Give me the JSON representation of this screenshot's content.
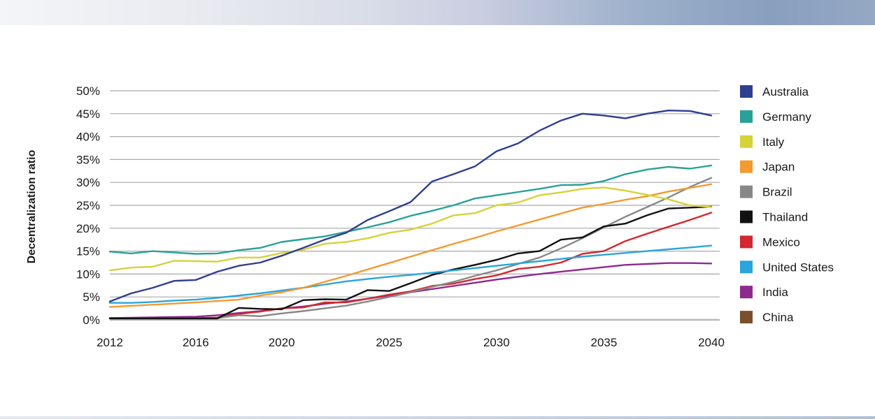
{
  "chart_data": {
    "type": "line",
    "title": "",
    "xlabel": "",
    "ylabel": "Decentralization ratio",
    "xlim": [
      2012,
      2040
    ],
    "ylim": [
      0,
      50
    ],
    "x_ticks": [
      2012,
      2016,
      2020,
      2025,
      2030,
      2035,
      2040
    ],
    "x_tick_labels": [
      "2012",
      "2016",
      "2020",
      "2025",
      "2030",
      "2035",
      "2040"
    ],
    "y_ticks": [
      0,
      5,
      10,
      15,
      20,
      25,
      30,
      35,
      40,
      45,
      50
    ],
    "y_tick_labels": [
      "0%",
      "5%",
      "10%",
      "15%",
      "20%",
      "25%",
      "30%",
      "35%",
      "40%",
      "45%",
      "50%"
    ],
    "grid": "horizontal",
    "legend_position": "right",
    "series": [
      {
        "name": "Australia",
        "color": "#2e3f8f",
        "x": [
          2012,
          2013,
          2014,
          2015,
          2016,
          2017,
          2018,
          2019,
          2020,
          2021,
          2022,
          2023,
          2024,
          2025,
          2026,
          2027,
          2028,
          2029,
          2030,
          2031,
          2032,
          2033,
          2034,
          2035,
          2036,
          2037,
          2038,
          2039,
          2040
        ],
        "values": [
          4.0,
          5.8,
          7.0,
          8.5,
          8.7,
          10.5,
          11.8,
          12.5,
          14.0,
          15.7,
          17.5,
          19.0,
          21.8,
          23.7,
          25.7,
          30.2,
          31.8,
          33.5,
          36.8,
          38.5,
          41.3,
          43.5,
          45.0,
          44.6,
          44.0,
          45.0,
          45.7,
          45.6,
          44.6
        ]
      },
      {
        "name": "Germany",
        "color": "#2aa198",
        "x": [
          2012,
          2013,
          2014,
          2015,
          2016,
          2017,
          2018,
          2019,
          2020,
          2021,
          2022,
          2023,
          2024,
          2025,
          2026,
          2027,
          2028,
          2029,
          2030,
          2031,
          2032,
          2033,
          2034,
          2035,
          2036,
          2037,
          2038,
          2039,
          2040
        ],
        "values": [
          14.9,
          14.5,
          15.0,
          14.7,
          14.4,
          14.5,
          15.2,
          15.7,
          17.0,
          17.6,
          18.2,
          19.2,
          20.2,
          21.3,
          22.7,
          23.8,
          25.0,
          26.5,
          27.2,
          27.9,
          28.6,
          29.4,
          29.5,
          30.3,
          31.8,
          32.8,
          33.4,
          33.0,
          33.7
        ]
      },
      {
        "name": "Italy",
        "color": "#d6d23a",
        "x": [
          2012,
          2013,
          2014,
          2015,
          2016,
          2017,
          2018,
          2019,
          2020,
          2021,
          2022,
          2023,
          2024,
          2025,
          2026,
          2027,
          2028,
          2029,
          2030,
          2031,
          2032,
          2033,
          2034,
          2035,
          2036,
          2037,
          2038,
          2039,
          2040
        ],
        "values": [
          10.8,
          11.4,
          11.6,
          12.9,
          12.8,
          12.7,
          13.6,
          13.6,
          14.6,
          15.3,
          16.6,
          17.0,
          17.8,
          19.0,
          19.7,
          21.0,
          22.8,
          23.3,
          25.0,
          25.6,
          27.2,
          27.8,
          28.6,
          28.9,
          28.2,
          27.3,
          26.3,
          25.0,
          24.6
        ]
      },
      {
        "name": "Japan",
        "color": "#f39a30",
        "x": [
          2012,
          2016,
          2018,
          2019,
          2020,
          2021,
          2022,
          2023,
          2024,
          2025,
          2026,
          2027,
          2028,
          2029,
          2030,
          2031,
          2032,
          2033,
          2034,
          2035,
          2036,
          2037,
          2038,
          2039,
          2040
        ],
        "values": [
          2.8,
          3.8,
          4.4,
          5.3,
          6.0,
          7.0,
          8.3,
          9.6,
          11.0,
          12.4,
          13.8,
          15.2,
          16.6,
          17.9,
          19.3,
          20.6,
          21.9,
          23.2,
          24.5,
          25.3,
          26.2,
          27.0,
          28.0,
          28.8,
          29.6
        ]
      },
      {
        "name": "Brazil",
        "color": "#888888",
        "x": [
          2012,
          2016,
          2017,
          2018,
          2019,
          2020,
          2021,
          2022,
          2023,
          2024,
          2025,
          2026,
          2027,
          2028,
          2029,
          2030,
          2031,
          2032,
          2033,
          2034,
          2035,
          2036,
          2037,
          2038,
          2039,
          2040
        ],
        "values": [
          0.3,
          0.3,
          0.4,
          1.0,
          0.8,
          1.4,
          1.9,
          2.5,
          3.1,
          4.0,
          5.0,
          6.0,
          7.2,
          8.3,
          9.6,
          10.8,
          12.2,
          13.6,
          15.6,
          17.8,
          20.2,
          22.5,
          24.6,
          26.7,
          29.0,
          31.0
        ]
      },
      {
        "name": "Thailand",
        "color": "#111111",
        "x": [
          2012,
          2016,
          2017,
          2018,
          2019,
          2020,
          2021,
          2022,
          2023,
          2024,
          2025,
          2026,
          2027,
          2028,
          2029,
          2030,
          2031,
          2032,
          2033,
          2034,
          2035,
          2036,
          2037,
          2038,
          2039,
          2040
        ],
        "values": [
          0.3,
          0.3,
          0.3,
          2.6,
          2.4,
          2.3,
          4.3,
          4.5,
          4.4,
          6.5,
          6.3,
          8.0,
          9.8,
          11.0,
          12.0,
          13.1,
          14.5,
          15.0,
          17.5,
          18.0,
          20.4,
          21.0,
          22.8,
          24.3,
          24.5,
          24.7
        ]
      },
      {
        "name": "Mexico",
        "color": "#d2282e",
        "x": [
          2012,
          2016,
          2017,
          2018,
          2019,
          2020,
          2021,
          2022,
          2023,
          2024,
          2025,
          2026,
          2027,
          2028,
          2029,
          2030,
          2031,
          2032,
          2033,
          2034,
          2035,
          2036,
          2037,
          2038,
          2039,
          2040
        ],
        "values": [
          0.4,
          0.4,
          0.5,
          1.3,
          1.8,
          2.5,
          2.7,
          3.8,
          3.8,
          4.6,
          5.5,
          6.2,
          7.4,
          7.9,
          8.9,
          9.7,
          11.1,
          11.6,
          12.5,
          14.4,
          15.0,
          17.2,
          18.8,
          20.3,
          21.8,
          23.4
        ]
      },
      {
        "name": "United States",
        "color": "#2aa5dc",
        "x": [
          2012,
          2013,
          2014,
          2015,
          2016,
          2017,
          2018,
          2019,
          2020,
          2021,
          2022,
          2023,
          2024,
          2025,
          2026,
          2027,
          2028,
          2029,
          2030,
          2031,
          2032,
          2033,
          2034,
          2035,
          2036,
          2037,
          2038,
          2039,
          2040
        ],
        "values": [
          3.7,
          3.7,
          3.9,
          4.2,
          4.4,
          4.8,
          5.3,
          5.8,
          6.4,
          7.0,
          7.7,
          8.4,
          8.9,
          9.4,
          9.8,
          10.3,
          10.8,
          11.3,
          11.8,
          12.3,
          12.8,
          13.3,
          13.8,
          14.2,
          14.6,
          15.0,
          15.4,
          15.8,
          16.2
        ]
      },
      {
        "name": "India",
        "color": "#8e2a8e",
        "x": [
          2012,
          2016,
          2017,
          2018,
          2019,
          2020,
          2021,
          2022,
          2023,
          2024,
          2025,
          2026,
          2027,
          2028,
          2029,
          2030,
          2031,
          2032,
          2033,
          2034,
          2035,
          2036,
          2037,
          2038,
          2039,
          2040
        ],
        "values": [
          0.4,
          0.7,
          1.0,
          1.5,
          1.9,
          2.5,
          2.9,
          3.5,
          4.0,
          4.6,
          5.3,
          6.0,
          6.7,
          7.4,
          8.1,
          8.8,
          9.4,
          10.0,
          10.5,
          11.0,
          11.5,
          12.0,
          12.2,
          12.4,
          12.4,
          12.3
        ]
      },
      {
        "name": "China",
        "color": "#7a4f2a",
        "x": [],
        "values": []
      }
    ]
  }
}
